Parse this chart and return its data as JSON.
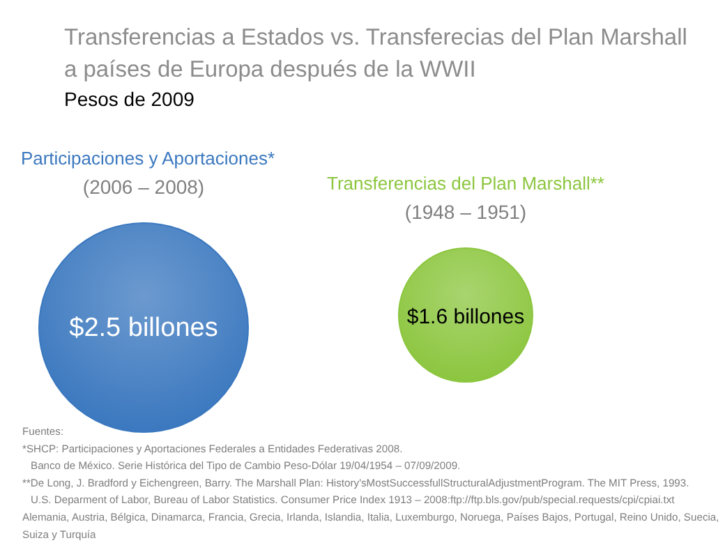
{
  "chart_data": {
    "type": "other",
    "title": "Transferencias a Estados vs. Transferecias del Plan Marshall a países de Europa después de la WWII",
    "subtitle": "Pesos de 2009",
    "categories": [
      "Participaciones y Aportaciones*",
      "Transferencias del Plan Marshall**"
    ],
    "values": [
      2.5,
      1.6
    ],
    "value_labels": [
      "$2.5 billones",
      "$1.6 billones"
    ],
    "colors": [
      "#3b78bf",
      "#8cc63f"
    ],
    "annotations": [
      "(2006 – 2008)",
      "(1948 – 1951)",
      "Fuentes:",
      "*SHCP: Participaciones y Aportaciones Federales a Entidades Federativas 2008.",
      "Banco de México. Serie Histórica del Tipo de Cambio Peso-Dólar 19/04/1954 – 07/09/2009.",
      "**De Long, J. Bradford y Eichengreen, Barry. The Marshall Plan: History'sMostSuccessfullStructuralAdjustmentProgram. The MIT Press, 1993.",
      "U.S. Deparment of Labor, Bureau of Labor Statistics. Consumer Price Index 1913 – 2008:ftp://ftp.bls.gov/pub/special.requests/cpi/cpiai.txt",
      "Alemania, Austria, Bélgica, Dinamarca, Francia, Grecia, Irlanda, Islandia, Italia, Luxemburgo, Noruega, Países Bajos, Portugal, Reino Unido, Suecia,",
      "Suiza y Turquía"
    ]
  }
}
